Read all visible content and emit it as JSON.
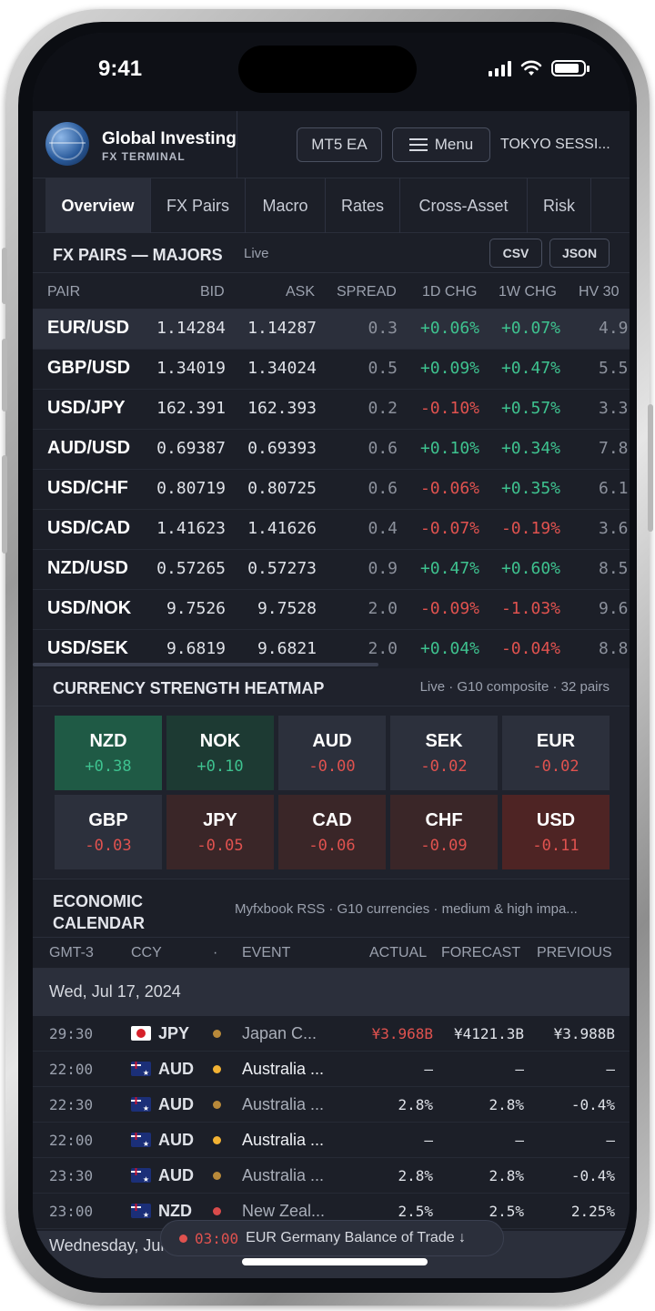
{
  "status_bar": {
    "time": "9:41"
  },
  "header": {
    "brand_name": "Global Investing",
    "brand_sub": "FX TERMINAL",
    "mt5_label": "MT5 EA",
    "menu_label": "Menu",
    "session": "TOKYO SESSI..."
  },
  "tabs": [
    "Overview",
    "FX Pairs",
    "Macro",
    "Rates",
    "Cross-Asset",
    "Risk"
  ],
  "fx_section": {
    "title": "FX PAIRS — MAJORS",
    "status": "Live",
    "csv_label": "CSV",
    "json_label": "JSON",
    "columns": [
      "PAIR",
      "BID",
      "ASK",
      "SPREAD",
      "1D CHG",
      "1W CHG",
      "HV 30"
    ],
    "rows": [
      {
        "pair": "EUR/USD",
        "bid": "1.14284",
        "ask": "1.14287",
        "spread": "0.3",
        "d1": "+0.06%",
        "w1": "+0.07%",
        "hv": "4.9"
      },
      {
        "pair": "GBP/USD",
        "bid": "1.34019",
        "ask": "1.34024",
        "spread": "0.5",
        "d1": "+0.09%",
        "w1": "+0.47%",
        "hv": "5.5"
      },
      {
        "pair": "USD/JPY",
        "bid": "162.391",
        "ask": "162.393",
        "spread": "0.2",
        "d1": "-0.10%",
        "w1": "+0.57%",
        "hv": "3.3"
      },
      {
        "pair": "AUD/USD",
        "bid": "0.69387",
        "ask": "0.69393",
        "spread": "0.6",
        "d1": "+0.10%",
        "w1": "+0.34%",
        "hv": "7.8"
      },
      {
        "pair": "USD/CHF",
        "bid": "0.80719",
        "ask": "0.80725",
        "spread": "0.6",
        "d1": "-0.06%",
        "w1": "+0.35%",
        "hv": "6.1"
      },
      {
        "pair": "USD/CAD",
        "bid": "1.41623",
        "ask": "1.41626",
        "spread": "0.4",
        "d1": "-0.07%",
        "w1": "-0.19%",
        "hv": "3.6"
      },
      {
        "pair": "NZD/USD",
        "bid": "0.57265",
        "ask": "0.57273",
        "spread": "0.9",
        "d1": "+0.47%",
        "w1": "+0.60%",
        "hv": "8.5"
      },
      {
        "pair": "USD/NOK",
        "bid": "9.7526",
        "ask": "9.7528",
        "spread": "2.0",
        "d1": "-0.09%",
        "w1": "-1.03%",
        "hv": "9.6"
      },
      {
        "pair": "USD/SEK",
        "bid": "9.6819",
        "ask": "9.6821",
        "spread": "2.0",
        "d1": "+0.04%",
        "w1": "-0.04%",
        "hv": "8.8"
      }
    ]
  },
  "heatmap": {
    "title": "CURRENCY STRENGTH HEATMAP",
    "note": "Live · G10 composite · 32 pairs",
    "cells": [
      {
        "ccy": "NZD",
        "val": "+0.38",
        "tone": "up-strong"
      },
      {
        "ccy": "NOK",
        "val": "+0.10",
        "tone": "up"
      },
      {
        "ccy": "AUD",
        "val": "-0.00",
        "tone": "neutral"
      },
      {
        "ccy": "SEK",
        "val": "-0.02",
        "tone": "neutral"
      },
      {
        "ccy": "EUR",
        "val": "-0.02",
        "tone": "neutral"
      },
      {
        "ccy": "GBP",
        "val": "-0.03",
        "tone": "neutral"
      },
      {
        "ccy": "JPY",
        "val": "-0.05",
        "tone": "down"
      },
      {
        "ccy": "CAD",
        "val": "-0.06",
        "tone": "down"
      },
      {
        "ccy": "CHF",
        "val": "-0.09",
        "tone": "down"
      },
      {
        "ccy": "USD",
        "val": "-0.11",
        "tone": "down-strong"
      }
    ]
  },
  "calendar": {
    "title_line1": "ECONOMIC",
    "title_line2": "CALENDAR",
    "note": "Myfxbook RSS · G10 currencies · medium & high impa...",
    "columns": {
      "time": "GMT-3",
      "ccy": "CCY",
      "impact": "·",
      "event": "EVENT",
      "actual": "ACTUAL",
      "forecast": "FORECAST",
      "previous": "PREVIOUS"
    },
    "date1": "Wed, Jul 17, 2024",
    "events": [
      {
        "time": "29:30",
        "flag": "jp",
        "ccy": "JPY",
        "impact": "medium",
        "event": "Japan C...",
        "actual": "¥3.968B",
        "actual_tone": "down",
        "forecast": "¥4121.3B",
        "previous": "¥3.988B",
        "dim": true
      },
      {
        "time": "22:00",
        "flag": "au",
        "ccy": "AUD",
        "impact": "high",
        "event": "Australia ...",
        "actual": "–",
        "actual_tone": "none",
        "forecast": "–",
        "previous": "–",
        "dim": false
      },
      {
        "time": "22:30",
        "flag": "au",
        "ccy": "AUD",
        "impact": "medium",
        "event": "Australia ...",
        "actual": "2.8%",
        "actual_tone": "none",
        "forecast": "2.8%",
        "previous": "-0.4%",
        "dim": true
      },
      {
        "time": "22:00",
        "flag": "au",
        "ccy": "AUD",
        "impact": "high",
        "event": "Australia ...",
        "actual": "–",
        "actual_tone": "none",
        "forecast": "–",
        "previous": "–",
        "dim": false
      },
      {
        "time": "23:30",
        "flag": "au",
        "ccy": "AUD",
        "impact": "medium",
        "event": "Australia ...",
        "actual": "2.8%",
        "actual_tone": "none",
        "forecast": "2.8%",
        "previous": "-0.4%",
        "dim": true
      },
      {
        "time": "23:00",
        "flag": "nz",
        "ccy": "NZD",
        "impact": "red",
        "event": "New Zeal...",
        "actual": "2.5%",
        "actual_tone": "none",
        "forecast": "2.5%",
        "previous": "2.25%",
        "dim": true
      }
    ],
    "date2": "Wednesday, Jul 9"
  },
  "toast": {
    "time": "03:00",
    "text": "EUR Germany Balance of Trade ↓"
  },
  "colors": {
    "up": "#3ec28f",
    "down": "#e0524f",
    "heat_up_strong": "#1f5a45",
    "heat_up": "#1d3a33",
    "heat_neutral": "#2c303c",
    "heat_down": "#3a2628",
    "heat_down_strong": "#4e2424",
    "impact_high": "#f2b233",
    "impact_medium": "#b8893a",
    "impact_red": "#d94b4b"
  }
}
